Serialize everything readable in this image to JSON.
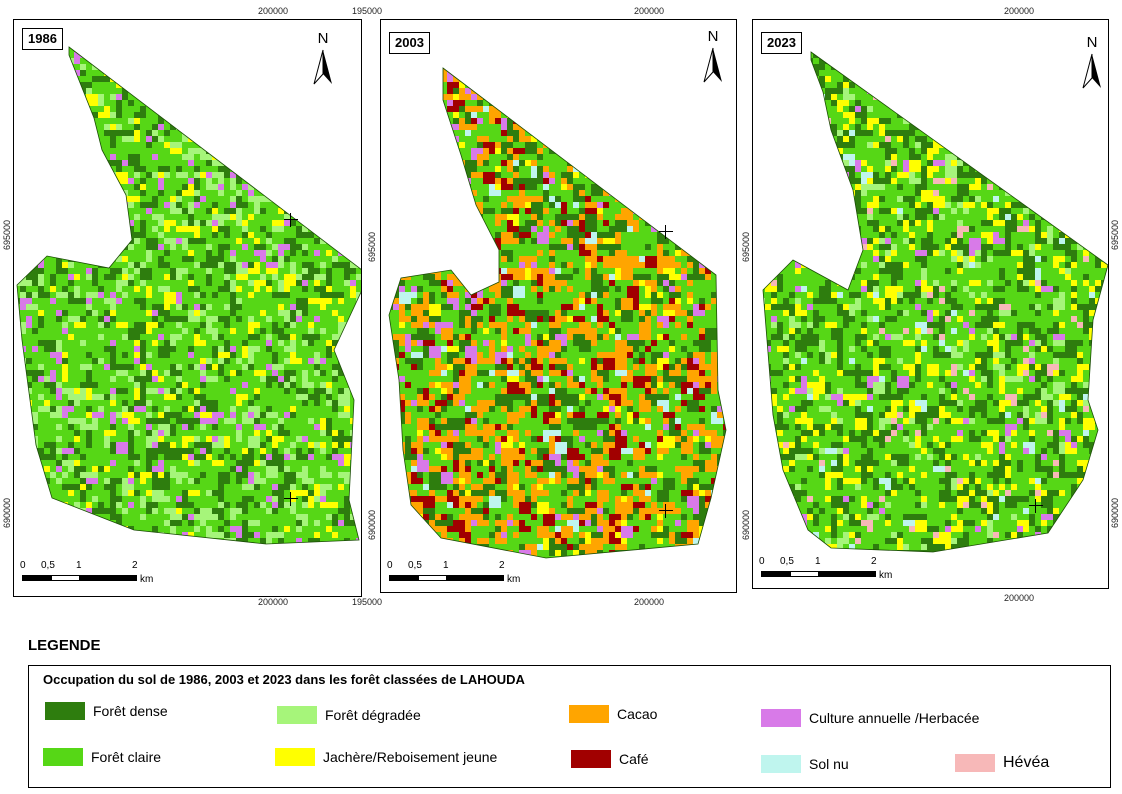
{
  "maps": [
    {
      "year": "1986",
      "colors": [
        "#2e7d0e",
        "#56d716",
        "#56d716",
        "#2e7d0e",
        "#a6f57a",
        "#ffff00",
        "#d87ae8"
      ],
      "weights": [
        0.38,
        0.4,
        0.0,
        0.0,
        0.12,
        0.06,
        0.04
      ]
    },
    {
      "year": "2003",
      "colors": [
        "#56d716",
        "#2e7d0e",
        "#ffa500",
        "#a10000",
        "#ffff00",
        "#d87ae8",
        "#bff5ee"
      ],
      "weights": [
        0.55,
        0.12,
        0.18,
        0.07,
        0.03,
        0.03,
        0.02
      ]
    },
    {
      "year": "2023",
      "colors": [
        "#2e7d0e",
        "#56d716",
        "#ffff00",
        "#a6f57a",
        "#d87ae8",
        "#bff5ee",
        "#f7b8b8"
      ],
      "weights": [
        0.42,
        0.38,
        0.1,
        0.04,
        0.02,
        0.02,
        0.02
      ]
    }
  ],
  "coords": {
    "top_x": "200000",
    "left_x": "195000",
    "y1": "695000",
    "y2": "690000"
  },
  "scale": {
    "ticks": [
      "0",
      "0,5",
      "1",
      "2"
    ],
    "unit": "km"
  },
  "north_label": "N",
  "legend": {
    "title": "LEGENDE",
    "subtitle": "Occupation du sol de 1986, 2003 et 2023 dans les forêt classées de LAHOUDA",
    "items": [
      {
        "label": "Forêt dense",
        "color": "#2e7d0e"
      },
      {
        "label": "Forêt claire",
        "color": "#56d716"
      },
      {
        "label": "Forêt dégradée",
        "color": "#a6f57a"
      },
      {
        "label": "Jachère/Reboisement jeune",
        "color": "#ffff00"
      },
      {
        "label": "Cacao",
        "color": "#ffa500"
      },
      {
        "label": "Café",
        "color": "#a10000"
      },
      {
        "label": "Culture annuelle /Herbacée",
        "color": "#d87ae8"
      },
      {
        "label": "Sol nu",
        "color": "#bff5ee"
      },
      {
        "label": "Hévéa",
        "color": "#f7b8b8"
      }
    ]
  }
}
